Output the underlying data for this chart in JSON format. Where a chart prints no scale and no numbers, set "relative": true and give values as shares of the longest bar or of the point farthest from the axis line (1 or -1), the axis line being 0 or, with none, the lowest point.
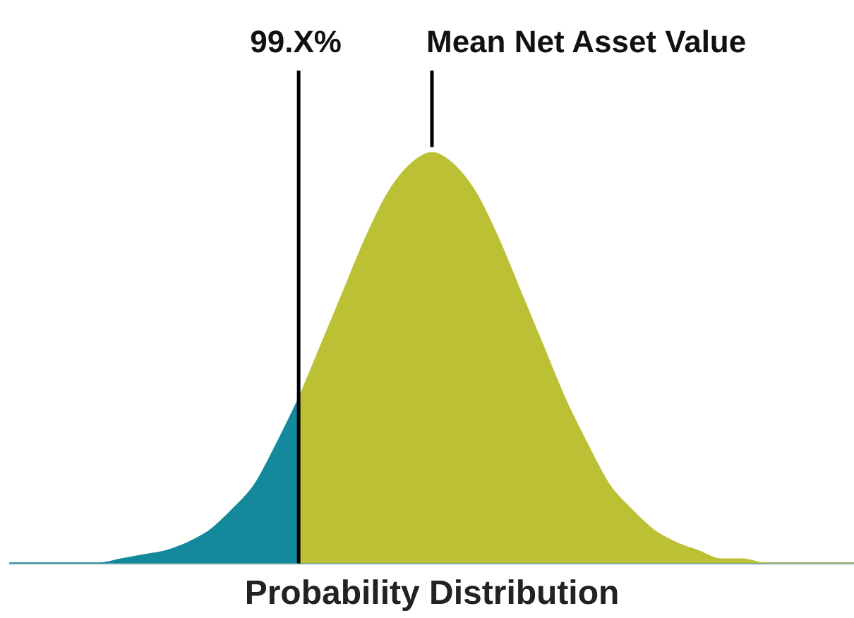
{
  "chart_data": {
    "type": "area",
    "relative": true,
    "xlabel": "Probability Distribution",
    "categories": [
      null,
      null,
      null,
      null,
      null,
      null,
      null,
      null,
      null,
      null,
      null,
      null,
      null,
      null,
      null,
      null,
      null,
      null,
      null,
      null,
      null,
      null,
      null,
      null,
      null,
      null,
      null,
      null,
      null,
      null,
      null,
      null,
      null,
      null,
      null,
      null,
      null,
      null,
      null
    ],
    "series": [
      {
        "color": "#13899b",
        "values": [
          0,
          0,
          0,
          0,
          0,
          0.01,
          0.02,
          0.03,
          0.05,
          0.08,
          0.13,
          0.19,
          0.29,
          0.4,
          null,
          null,
          null,
          null,
          null,
          null,
          null,
          null,
          null,
          null,
          null,
          null,
          null,
          null,
          null,
          null,
          null,
          null,
          null,
          null,
          null,
          null,
          null,
          null,
          null
        ]
      },
      {
        "color": "#bcc034",
        "values": [
          null,
          null,
          null,
          null,
          null,
          null,
          null,
          null,
          null,
          null,
          null,
          null,
          null,
          0.4,
          0.53,
          0.66,
          0.79,
          0.9,
          0.97,
          1,
          0.97,
          0.9,
          0.79,
          0.66,
          0.53,
          0.4,
          0.29,
          0.19,
          0.13,
          0.08,
          0.05,
          0.03,
          0.01,
          0.01,
          0,
          0,
          0,
          0,
          0
        ]
      }
    ],
    "annotations": [
      "99.X%",
      "Mean Net Asset Value"
    ],
    "grid": false,
    "legend": false
  }
}
